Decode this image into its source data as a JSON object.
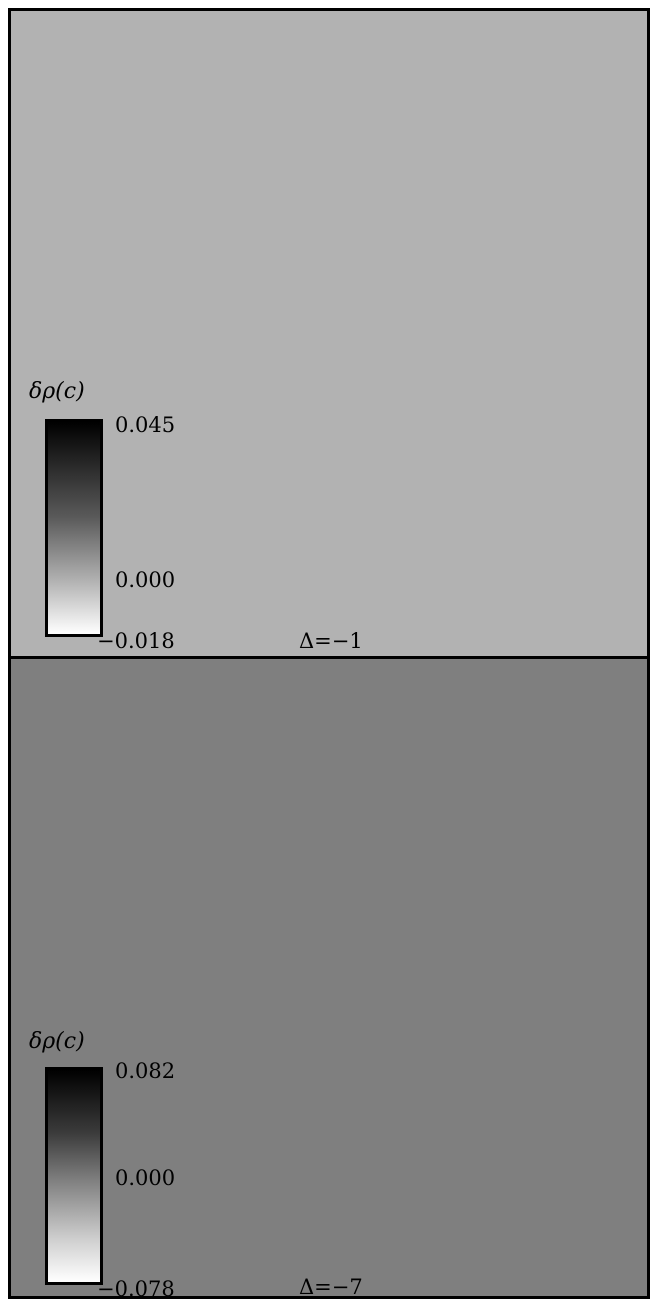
{
  "chart_data": [
    {
      "type": "heatmap",
      "panel_label": "Δ=−1",
      "colorbar": {
        "label": "δρ(c)",
        "colors": [
          "#ffffff",
          "#000000"
        ],
        "ticks": [
          "0.045",
          "0.000",
          "−0.018"
        ],
        "range": [
          -0.018,
          0.045
        ]
      },
      "background_value": 0.0
    },
    {
      "type": "heatmap",
      "panel_label": "Δ=−7",
      "colorbar": {
        "label": "δρ(c)",
        "colors": [
          "#ffffff",
          "#000000"
        ],
        "ticks": [
          "0.082",
          "0.000",
          "−0.078"
        ],
        "range": [
          -0.078,
          0.082
        ]
      },
      "background_value": 0.0
    }
  ]
}
